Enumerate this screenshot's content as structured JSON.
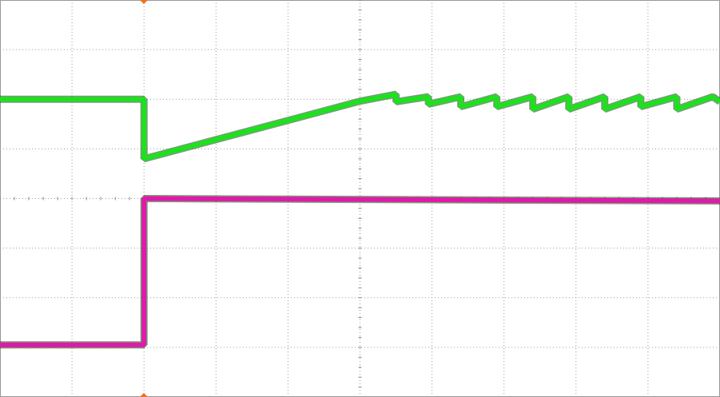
{
  "chart_data": {
    "type": "line",
    "xlim": [
      0,
      10
    ],
    "ylim": [
      0,
      8
    ],
    "xticks": [
      0,
      1,
      2,
      3,
      4,
      5,
      6,
      7,
      8,
      9,
      10
    ],
    "yticks": [
      0,
      1,
      2,
      3,
      4,
      5,
      6,
      7,
      8
    ],
    "grid": true,
    "series": [
      {
        "color": "#1fe01f",
        "x": [
          0,
          2.0,
          2.0,
          5.0,
          5.5,
          5.5,
          5.95,
          5.95,
          6.4,
          6.4,
          6.9,
          6.9,
          7.4,
          7.4,
          7.9,
          7.9,
          8.4,
          8.4,
          8.9,
          8.9,
          9.4,
          9.4,
          9.9,
          10
        ],
        "values": [
          6.0,
          6.0,
          4.8,
          5.96,
          6.1,
          5.95,
          6.05,
          5.9,
          6.05,
          5.85,
          6.05,
          5.85,
          6.05,
          5.8,
          6.05,
          5.8,
          6.05,
          5.8,
          6.05,
          5.85,
          6.05,
          5.8,
          6.05,
          5.95
        ]
      },
      {
        "color": "#e01aa8",
        "x": [
          0,
          2.0,
          2.0,
          10
        ],
        "values": [
          1.05,
          1.05,
          4.0,
          3.95
        ]
      }
    ]
  }
}
